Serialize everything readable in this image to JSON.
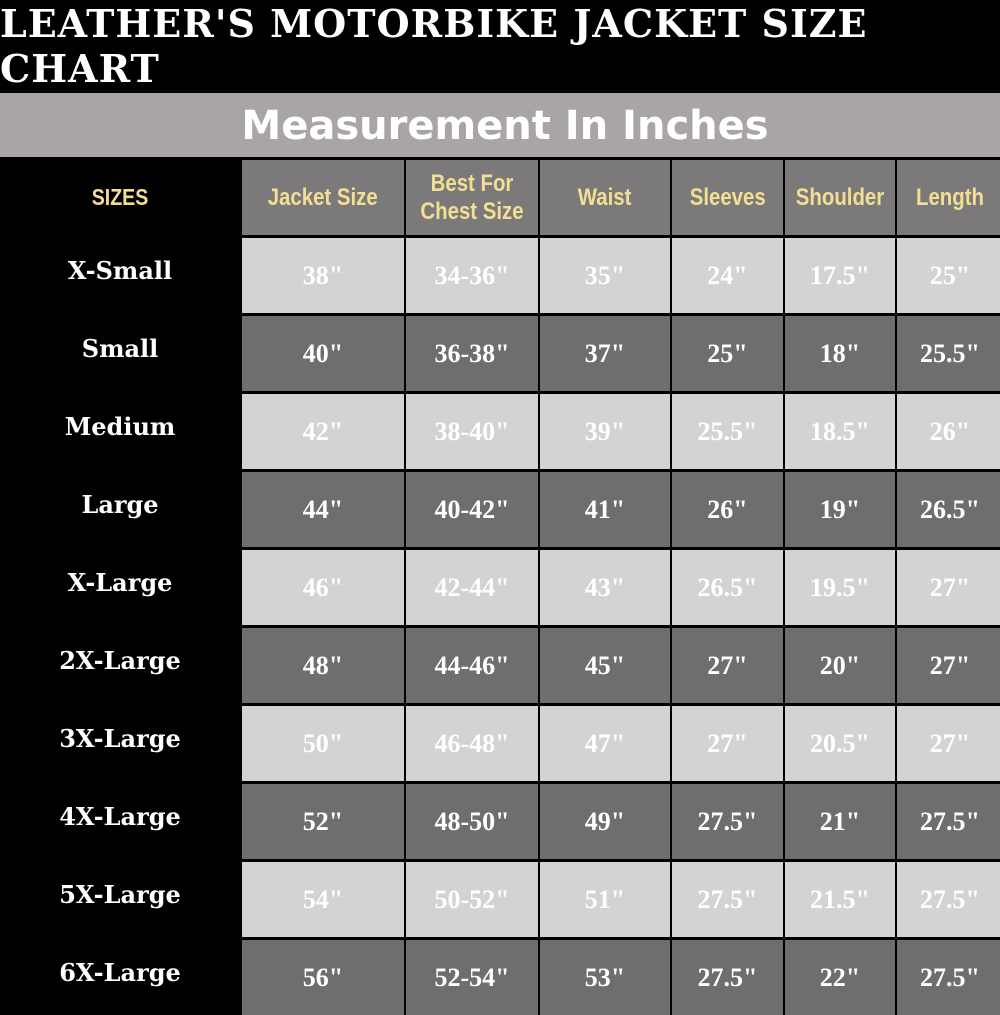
{
  "title": "LEATHER'S MOTORBIKE JACKET SIZE CHART",
  "subtitle": "Measurement In Inches",
  "colors": {
    "background": "#000000",
    "band": "#a9a5a5",
    "header_cell": "#7b7979",
    "header_text": "#f3df93",
    "row_light": "#d3d3d3",
    "row_dark": "#6f6d6d"
  },
  "chart_data": {
    "type": "table",
    "row_header_label": "SIZES",
    "columns": [
      "Jacket Size",
      "Best For Chest Size",
      "Waist",
      "Sleeves",
      "Shoulder",
      "Length"
    ],
    "rows": [
      {
        "size": "X-Small",
        "values": [
          "38\"",
          "34-36\"",
          "35\"",
          "24\"",
          "17.5\"",
          "25\""
        ]
      },
      {
        "size": "Small",
        "values": [
          "40\"",
          "36-38\"",
          "37\"",
          "25\"",
          "18\"",
          "25.5\""
        ]
      },
      {
        "size": "Medium",
        "values": [
          "42\"",
          "38-40\"",
          "39\"",
          "25.5\"",
          "18.5\"",
          "26\""
        ]
      },
      {
        "size": "Large",
        "values": [
          "44\"",
          "40-42\"",
          "41\"",
          "26\"",
          "19\"",
          "26.5\""
        ]
      },
      {
        "size": "X-Large",
        "values": [
          "46\"",
          "42-44\"",
          "43\"",
          "26.5\"",
          "19.5\"",
          "27\""
        ]
      },
      {
        "size": "2X-Large",
        "values": [
          "48\"",
          "44-46\"",
          "45\"",
          "27\"",
          "20\"",
          "27\""
        ]
      },
      {
        "size": "3X-Large",
        "values": [
          "50\"",
          "46-48\"",
          "47\"",
          "27\"",
          "20.5\"",
          "27\""
        ]
      },
      {
        "size": "4X-Large",
        "values": [
          "52\"",
          "48-50\"",
          "49\"",
          "27.5\"",
          "21\"",
          "27.5\""
        ]
      },
      {
        "size": "5X-Large",
        "values": [
          "54\"",
          "50-52\"",
          "51\"",
          "27.5\"",
          "21.5\"",
          "27.5\""
        ]
      },
      {
        "size": "6X-Large",
        "values": [
          "56\"",
          "52-54\"",
          "53\"",
          "27.5\"",
          "22\"",
          "27.5\""
        ]
      }
    ]
  }
}
